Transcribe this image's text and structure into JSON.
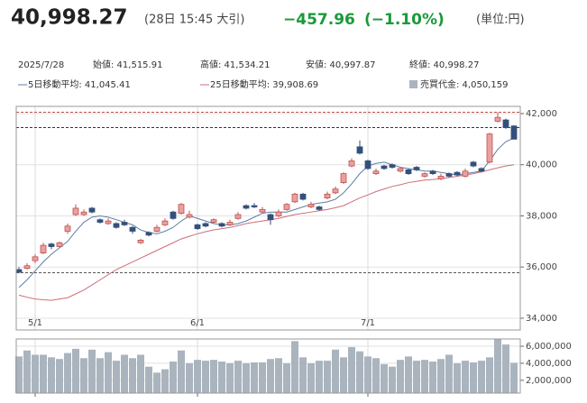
{
  "header": {
    "price": "40,998.27",
    "time": "(28日 15:45 大引)",
    "change": "−457.96",
    "change_pct": "(−1.10%)",
    "unit": "(単位:円)"
  },
  "info": {
    "date": "2025/7/28",
    "open": "始値: 41,515.91",
    "high": "高値: 41,534.21",
    "low": "安値: 40,997.87",
    "close": "終値: 40,998.27"
  },
  "chart_data": [
    {
      "type": "candlestick",
      "categories": [
        null,
        null,
        "5/1",
        null,
        null,
        null,
        null,
        null,
        null,
        null,
        null,
        null,
        null,
        null,
        null,
        null,
        null,
        null,
        null,
        null,
        null,
        null,
        "6/1",
        null,
        null,
        null,
        null,
        null,
        null,
        null,
        null,
        null,
        null,
        null,
        null,
        null,
        null,
        null,
        null,
        null,
        null,
        null,
        null,
        "7/1",
        null,
        null,
        null,
        null,
        null,
        null,
        null,
        null,
        null,
        null,
        null,
        null,
        null,
        null,
        null,
        null,
        null,
        null
      ],
      "open": [
        35900,
        35950,
        36250,
        36550,
        36900,
        36800,
        37400,
        38050,
        38050,
        38300,
        37850,
        37700,
        37700,
        37750,
        37550,
        36950,
        37350,
        37400,
        37650,
        38150,
        38100,
        37950,
        37650,
        37700,
        37750,
        37700,
        37650,
        37900,
        38400,
        38400,
        38150,
        38050,
        38000,
        38250,
        38550,
        38850,
        38350,
        38350,
        38700,
        38900,
        39300,
        39950,
        40700,
        40150,
        39650,
        39950,
        40000,
        39750,
        39800,
        39900,
        39550,
        39750,
        39450,
        39650,
        39700,
        39550,
        40100,
        39850,
        40100,
        41700,
        41750,
        41515.91
      ],
      "high": [
        36000,
        36150,
        36500,
        36950,
        36950,
        37000,
        37700,
        38450,
        38250,
        38350,
        37900,
        37900,
        37750,
        37850,
        37600,
        37100,
        37400,
        37650,
        37900,
        38200,
        38500,
        38200,
        37700,
        37750,
        37900,
        37750,
        37850,
        38150,
        38450,
        38500,
        38350,
        38100,
        38250,
        38500,
        38900,
        38900,
        38550,
        38400,
        38950,
        39150,
        39700,
        40250,
        40950,
        40200,
        39850,
        40000,
        40050,
        39900,
        39850,
        39950,
        39700,
        39800,
        39650,
        39700,
        39750,
        39850,
        40150,
        39900,
        41250,
        42050,
        41800,
        41534.21
      ],
      "low": [
        35750,
        35900,
        36150,
        36500,
        36700,
        36750,
        37300,
        38000,
        38000,
        38100,
        37700,
        37650,
        37500,
        37600,
        37300,
        36900,
        37200,
        37350,
        37600,
        37850,
        38050,
        37900,
        37450,
        37550,
        37700,
        37550,
        37600,
        37850,
        38250,
        38300,
        38100,
        37650,
        37950,
        38200,
        38500,
        38600,
        38300,
        38200,
        38650,
        38850,
        39250,
        39900,
        40400,
        39800,
        39600,
        39800,
        39850,
        39700,
        39600,
        39750,
        39500,
        39600,
        39400,
        39500,
        39550,
        39500,
        39900,
        39700,
        40050,
        41650,
        41400,
        40997.87
      ],
      "close": [
        35800,
        36050,
        36400,
        36850,
        36800,
        36950,
        37600,
        38300,
        38150,
        38150,
        37750,
        37800,
        37550,
        37650,
        37400,
        37050,
        37250,
        37550,
        37800,
        37900,
        38450,
        38050,
        37500,
        37600,
        37850,
        37600,
        37750,
        38050,
        38300,
        38350,
        38250,
        37850,
        38150,
        38450,
        38850,
        38650,
        38450,
        38250,
        38850,
        39050,
        39650,
        40150,
        40450,
        39850,
        39750,
        39850,
        39900,
        39850,
        39650,
        39800,
        39650,
        39650,
        39550,
        39550,
        39600,
        39750,
        39950,
        39750,
        41200,
        41850,
        41450,
        40998.27
      ],
      "color_up": "#c0504d",
      "color_down": "#34507a",
      "series": [
        {
          "name": "5日移動平均: 41,045.41",
          "type": "line",
          "color": "#5b7fa6",
          "values": [
            35200,
            35500,
            35850,
            36200,
            36500,
            36750,
            37000,
            37400,
            37750,
            37950,
            38000,
            37950,
            37850,
            37750,
            37650,
            37450,
            37350,
            37300,
            37400,
            37550,
            37800,
            38000,
            37900,
            37800,
            37700,
            37650,
            37650,
            37700,
            37800,
            37950,
            38100,
            38150,
            38150,
            38150,
            38250,
            38350,
            38450,
            38500,
            38550,
            38650,
            38900,
            39250,
            39650,
            39950,
            40050,
            40100,
            40000,
            39900,
            39850,
            39800,
            39750,
            39750,
            39700,
            39650,
            39600,
            39650,
            39700,
            39750,
            40150,
            40600,
            40900,
            41045.41
          ]
        },
        {
          "name": "25日移動平均: 39,908.69",
          "type": "line",
          "color": "#cc6f78",
          "values": [
            34900,
            34820,
            34750,
            34720,
            34700,
            34750,
            34800,
            34950,
            35100,
            35300,
            35500,
            35700,
            35900,
            36050,
            36200,
            36350,
            36500,
            36650,
            36800,
            36950,
            37100,
            37200,
            37300,
            37380,
            37450,
            37500,
            37550,
            37620,
            37700,
            37750,
            37800,
            37850,
            37900,
            37980,
            38050,
            38100,
            38150,
            38200,
            38250,
            38320,
            38400,
            38550,
            38700,
            38820,
            38950,
            39050,
            39150,
            39220,
            39300,
            39350,
            39400,
            39420,
            39450,
            39500,
            39550,
            39600,
            39650,
            39720,
            39800,
            39880,
            39950,
            40000
          ]
        }
      ],
      "reference_lines": [
        {
          "value": 42050,
          "color": "#c0504d"
        },
        {
          "value": 41450,
          "color": "#333333"
        },
        {
          "value": 35780,
          "color": "#555555"
        }
      ],
      "ylim": [
        33540,
        42280
      ],
      "yticks": [
        {
          "value": 34000,
          "label": "34,000"
        },
        {
          "value": 36000,
          "label": "36,000"
        },
        {
          "value": 38000,
          "label": "38,000"
        },
        {
          "value": 40000,
          "label": "40,000"
        },
        {
          "value": 42000,
          "label": "42,000"
        }
      ],
      "grid": true
    },
    {
      "type": "bar",
      "series": [
        {
          "name": "売買代金: 4,050,159",
          "color": "#aab4be",
          "values": [
            4800000,
            5500000,
            5000000,
            5000000,
            4700000,
            4500000,
            5200000,
            5700000,
            4600000,
            5600000,
            4600000,
            5300000,
            4300000,
            5000000,
            4600000,
            5000000,
            3600000,
            2900000,
            3300000,
            4200000,
            5500000,
            4000000,
            4400000,
            4300000,
            4400000,
            4200000,
            4000000,
            4300000,
            4000000,
            4100000,
            4100000,
            4500000,
            4600000,
            4000000,
            6600000,
            4700000,
            4000000,
            4300000,
            4300000,
            5600000,
            4700000,
            5900000,
            5400000,
            4800000,
            4600000,
            3900000,
            3600000,
            4400000,
            4800000,
            4300000,
            4400000,
            4200000,
            4500000,
            5000000,
            4000000,
            4300000,
            4100000,
            4300000,
            4700000,
            6800000,
            6200000,
            4050159
          ]
        }
      ],
      "ylim": [
        500000,
        6850000
      ],
      "yticks": [
        {
          "value": 2000000,
          "label": "2,000,000"
        },
        {
          "value": 4000000,
          "label": "4,000,000"
        },
        {
          "value": 6000000,
          "label": "6,000,000"
        }
      ],
      "grid": true
    }
  ]
}
